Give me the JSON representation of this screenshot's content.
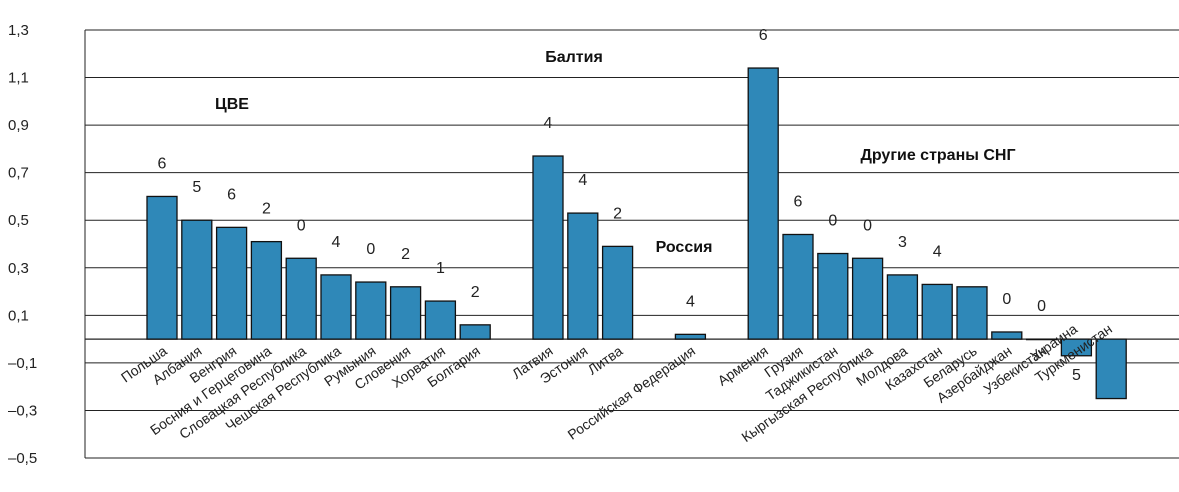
{
  "chart_data": {
    "type": "bar",
    "ylim": [
      -0.5,
      1.3
    ],
    "yticks": [
      "1,3",
      "1,1",
      "0,9",
      "0,7",
      "0,5",
      "0,3",
      "0,1",
      "–0,1",
      "–0,3",
      "–0,5"
    ],
    "bar_color": "#2f88b8",
    "groups": [
      {
        "name": "ЦВЕ",
        "categories": [
          "Польша",
          "Албания",
          "Венгрия",
          "Босния и Герцеговина",
          "Словацкая Республика",
          "Чешская Республика",
          "Румыния",
          "Словения",
          "Хорватия",
          "Болгария"
        ]
      },
      {
        "name": "Балтия",
        "categories": [
          "Латвия",
          "Эстония",
          "Литва"
        ]
      },
      {
        "name": "Россия",
        "categories": [
          "Российская Федерация"
        ]
      },
      {
        "name": "Другие страны СНГ",
        "categories": [
          "Армения",
          "Грузия",
          "Таджикистан",
          "Кыргызская Республика",
          "Молдова",
          "Казахстан",
          "Беларусь",
          "Азербайджан",
          "Узбекистан",
          "Украина",
          "Туркменистан"
        ]
      }
    ],
    "categories": [
      "Польша",
      "Албания",
      "Венгрия",
      "Босния и Герцеговина",
      "Словацкая Республика",
      "Чешская Республика",
      "Румыния",
      "Словения",
      "Хорватия",
      "Болгария",
      "Латвия",
      "Эстония",
      "Литва",
      "Российская Федерация",
      "Армения",
      "Грузия",
      "Таджикистан",
      "Кыргызская Республика",
      "Молдова",
      "Казахстан",
      "Беларусь",
      "Азербайджан",
      "Узбекистан",
      "Украина",
      "Туркменистан"
    ],
    "values": [
      0.6,
      0.5,
      0.47,
      0.41,
      0.34,
      0.27,
      0.24,
      0.22,
      0.16,
      0.06,
      0.77,
      0.53,
      0.39,
      0.02,
      1.14,
      0.44,
      0.36,
      0.34,
      0.27,
      0.23,
      0.22,
      0.03,
      0.0,
      -0.07,
      -0.25
    ],
    "data_labels": [
      "6",
      "5",
      "6",
      "2",
      "0",
      "4",
      "0",
      "2",
      "1",
      "2",
      "4",
      "4",
      "2",
      "4",
      "6",
      "6",
      "0",
      "0",
      "3",
      "4",
      "",
      "0",
      "0",
      "5",
      ""
    ]
  }
}
